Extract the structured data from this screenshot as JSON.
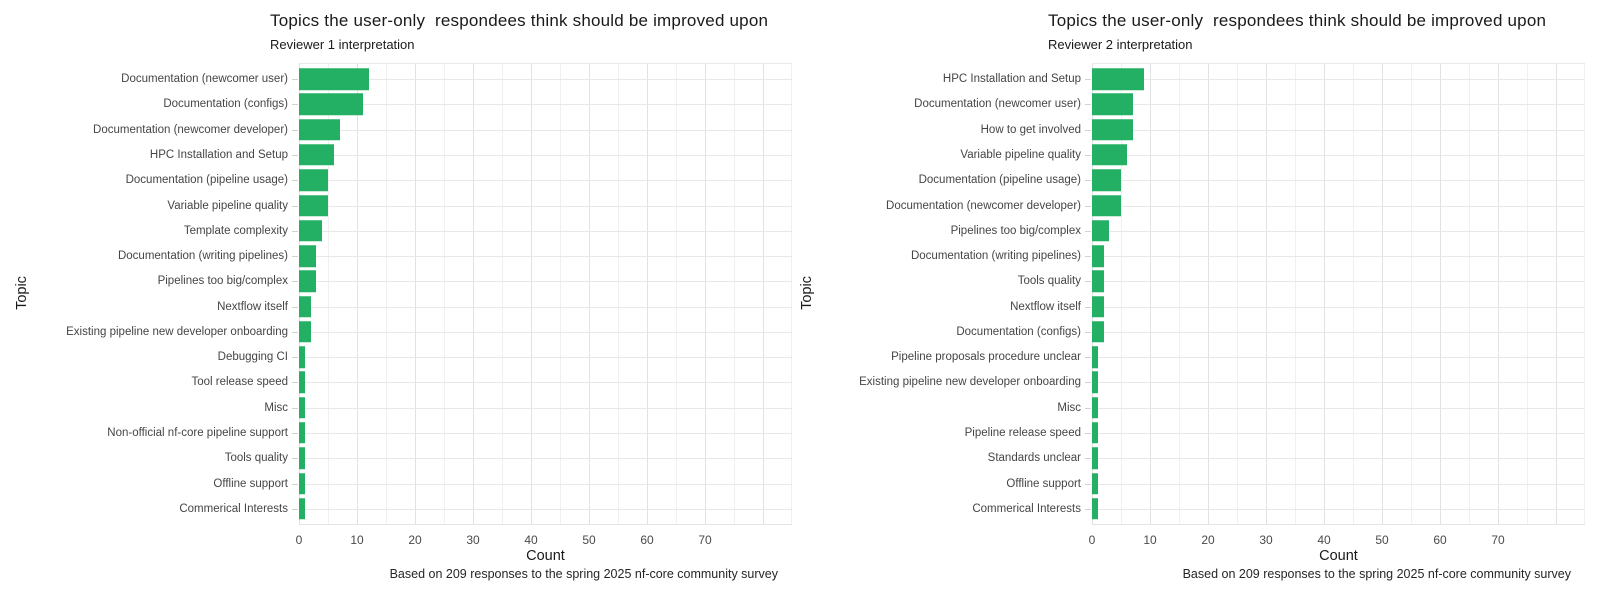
{
  "accent_color": "#24b064",
  "grid_major_color": "#e2e2e2",
  "grid_minor_color": "#f0f0f0",
  "chart_data": [
    {
      "type": "bar",
      "orientation": "horizontal",
      "title": "Topics the user-only  respondees think should be improved upon",
      "subtitle": "Reviewer 1 interpretation",
      "xlabel": "Count",
      "ylabel": "Topic",
      "caption": "Based on 209 responses to the spring 2025 nf-core community survey",
      "bar_color": "#24b064",
      "grid": true,
      "xlim": [
        0,
        85
      ],
      "xticks": [
        0,
        10,
        20,
        30,
        40,
        50,
        60,
        70
      ],
      "categories": [
        "Documentation (newcomer user)",
        "Documentation (configs)",
        "Documentation (newcomer developer)",
        "HPC Installation and Setup",
        "Documentation (pipeline usage)",
        "Variable pipeline quality",
        "Template complexity",
        "Documentation (writing pipelines)",
        "Pipelines too big/complex",
        "Nextflow itself",
        "Existing pipeline new developer onboarding",
        "Debugging CI",
        "Tool release speed",
        "Misc",
        "Non-official nf-core pipeline support",
        "Tools quality",
        "Offline support",
        "Commerical Interests"
      ],
      "values": [
        12,
        11,
        7,
        6,
        5,
        5,
        4,
        3,
        3,
        2,
        2,
        1,
        1,
        1,
        1,
        1,
        1,
        1
      ]
    },
    {
      "type": "bar",
      "orientation": "horizontal",
      "title": "Topics the user-only  respondees think should be improved upon",
      "subtitle": "Reviewer 2 interpretation",
      "xlabel": "Count",
      "ylabel": "Topic",
      "caption": "Based on 209 responses to the spring 2025 nf-core community survey",
      "bar_color": "#24b064",
      "grid": true,
      "xlim": [
        0,
        85
      ],
      "xticks": [
        0,
        10,
        20,
        30,
        40,
        50,
        60,
        70
      ],
      "categories": [
        "HPC Installation and Setup",
        "Documentation (newcomer user)",
        "How to get involved",
        "Variable pipeline quality",
        "Documentation (pipeline usage)",
        "Documentation (newcomer developer)",
        "Pipelines too big/complex",
        "Documentation (writing pipelines)",
        "Tools quality",
        "Nextflow itself",
        "Documentation (configs)",
        "Pipeline proposals procedure unclear",
        "Existing pipeline new developer onboarding",
        "Misc",
        "Pipeline release speed",
        "Standards unclear",
        "Offline support",
        "Commerical Interests"
      ],
      "values": [
        9,
        7,
        7,
        6,
        5,
        5,
        3,
        2,
        2,
        2,
        2,
        1,
        1,
        1,
        1,
        1,
        1,
        1
      ]
    }
  ]
}
